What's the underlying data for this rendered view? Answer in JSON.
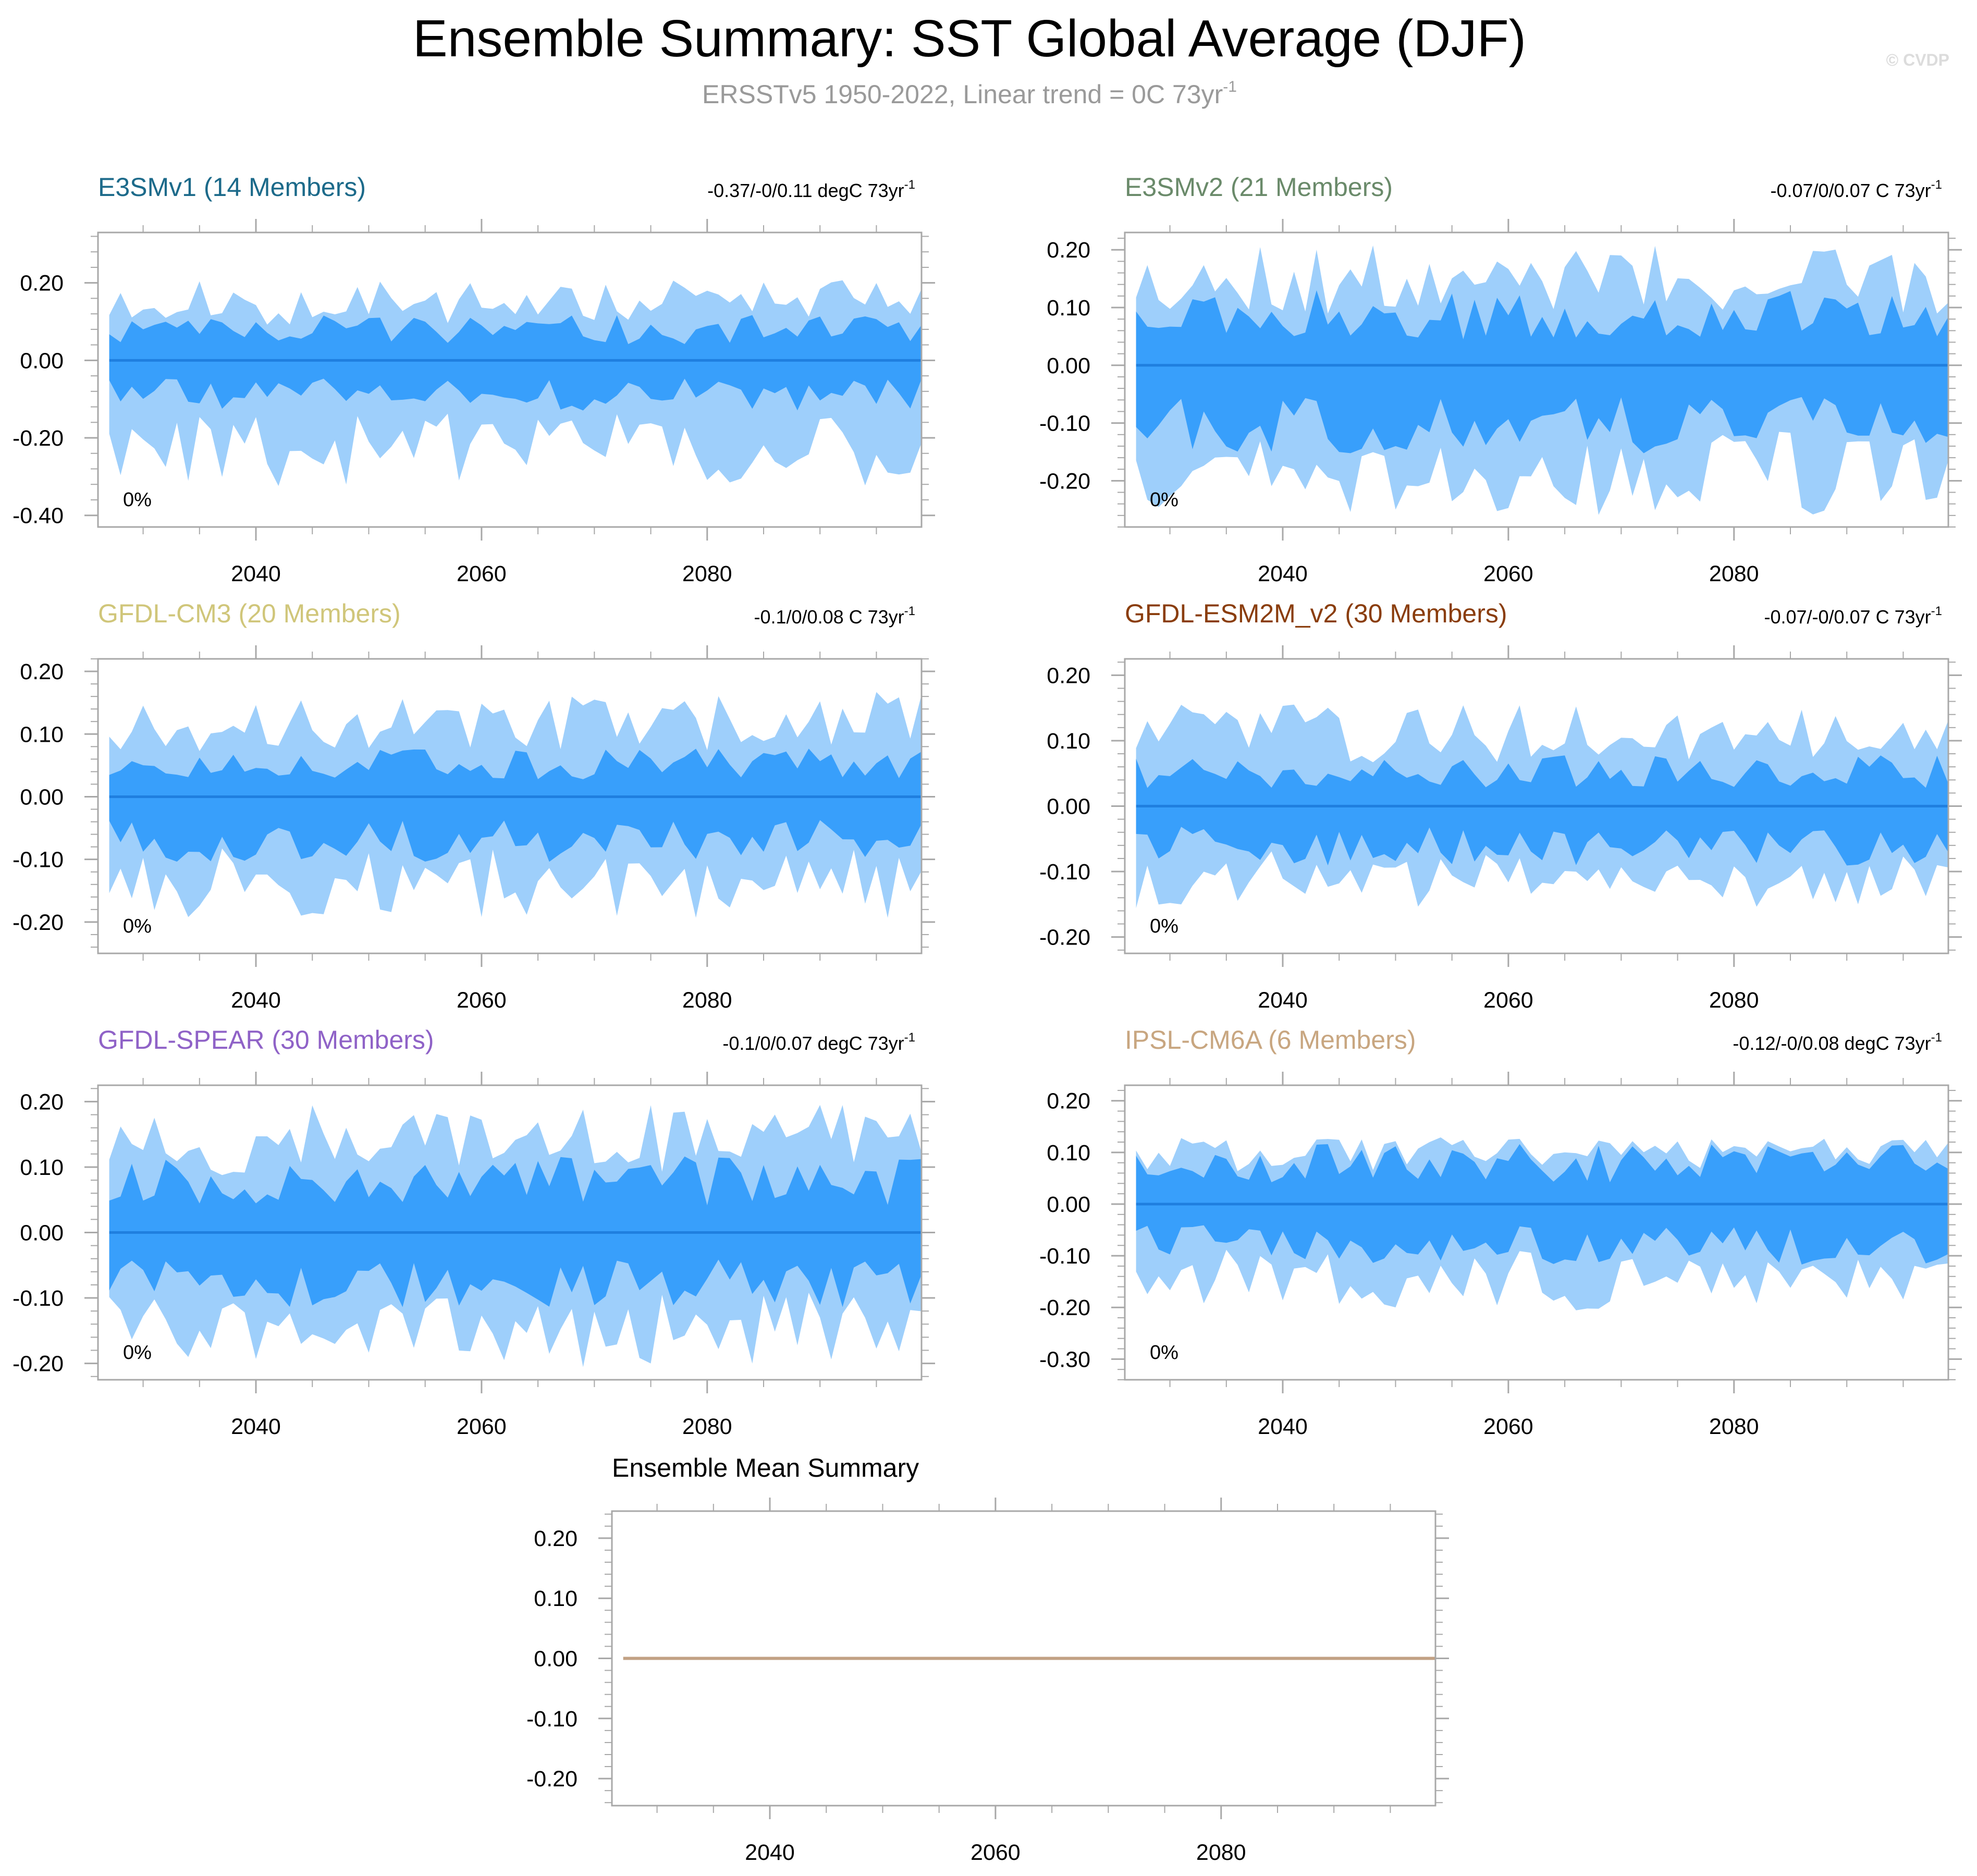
{
  "title": "Ensemble Summary: SST Global Average (DJF)",
  "subtitle": "ERSSTv5 1950-2022, Linear trend = 0C 73yr",
  "subtitle_sup": "-1",
  "watermark": "© CVDP",
  "colors": {
    "outer_band": "#9ecffb",
    "inner_band": "#389ffb",
    "mean_line": "#1f7fdf",
    "frame": "#a8a8a8",
    "ensemble_mean_line": "#c2a184"
  },
  "chart_data": [
    {
      "id": "e3smv1",
      "type": "area",
      "title": "E3SMv1 (14 Members)",
      "title_color": "#1c6a8a",
      "trend_text": "-0.37/-0/0.11 degC 73yr",
      "trend_sup": "-1",
      "percent_label": "0%",
      "xlim": [
        2026,
        2099
      ],
      "xticks": [
        2040,
        2060,
        2080
      ],
      "ylim": [
        -0.43,
        0.33
      ],
      "yticks": [
        0.2,
        0.0,
        -0.2,
        -0.4
      ],
      "ytick_labels": [
        "0.20",
        "0.00",
        "-0.20",
        "-0.40"
      ],
      "amp": {
        "outer_hi": 0.16,
        "outer_lo": -0.25,
        "inner_hi": 0.09,
        "inner_lo": -0.1
      },
      "seed": 11,
      "mean": 0.0
    },
    {
      "id": "e3smv2",
      "type": "area",
      "title": "E3SMv2 (21 Members)",
      "title_color": "#6a8a6a",
      "trend_text": "-0.07/0/0.07 C 73yr",
      "trend_sup": "-1",
      "percent_label": "0%",
      "xlim": [
        2026,
        2099
      ],
      "xticks": [
        2040,
        2060,
        2080
      ],
      "ylim": [
        -0.28,
        0.23
      ],
      "yticks": [
        0.2,
        0.1,
        0.0,
        -0.1,
        -0.2
      ],
      "ytick_labels": [
        "0.20",
        "0.10",
        "0.00",
        "-0.10",
        "-0.20"
      ],
      "amp": {
        "outer_hi": 0.16,
        "outer_lo": -0.2,
        "inner_hi": 0.1,
        "inner_lo": -0.12
      },
      "seed": 23,
      "mean": 0.0
    },
    {
      "id": "gfdl-cm3",
      "type": "area",
      "title": "GFDL-CM3 (20 Members)",
      "title_color": "#d0c67a",
      "trend_text": "-0.1/0/0.08 C 73yr",
      "trend_sup": "-1",
      "percent_label": "0%",
      "xlim": [
        2026,
        2099
      ],
      "xticks": [
        2040,
        2060,
        2080
      ],
      "ylim": [
        -0.25,
        0.22
      ],
      "yticks": [
        0.2,
        0.1,
        0.0,
        -0.1,
        -0.2
      ],
      "ytick_labels": [
        "0.20",
        "0.10",
        "0.00",
        "-0.10",
        "-0.20"
      ],
      "amp": {
        "outer_hi": 0.13,
        "outer_lo": -0.15,
        "inner_hi": 0.06,
        "inner_lo": -0.08
      },
      "seed": 37,
      "mean": 0.0
    },
    {
      "id": "gfdl-esm2m",
      "type": "area",
      "title": "GFDL-ESM2M_v2 (30 Members)",
      "title_color": "#8a3d0c",
      "trend_text": "-0.07/-0/0.07 C 73yr",
      "trend_sup": "-1",
      "percent_label": "0%",
      "xlim": [
        2026,
        2099
      ],
      "xticks": [
        2040,
        2060,
        2080
      ],
      "ylim": [
        -0.225,
        0.225
      ],
      "yticks": [
        0.2,
        0.1,
        0.0,
        -0.1,
        -0.2
      ],
      "ytick_labels": [
        "0.20",
        "0.10",
        "0.00",
        "-0.10",
        "-0.20"
      ],
      "amp": {
        "outer_hi": 0.12,
        "outer_lo": -0.12,
        "inner_hi": 0.06,
        "inner_lo": -0.07
      },
      "seed": 41,
      "mean": 0.0
    },
    {
      "id": "gfdl-spear",
      "type": "area",
      "title": "GFDL-SPEAR (30 Members)",
      "title_color": "#8f62c7",
      "trend_text": "-0.1/0/0.07 degC 73yr",
      "trend_sup": "-1",
      "percent_label": "0%",
      "xlim": [
        2026,
        2099
      ],
      "xticks": [
        2040,
        2060,
        2080
      ],
      "ylim": [
        -0.225,
        0.225
      ],
      "yticks": [
        0.2,
        0.1,
        0.0,
        -0.1,
        -0.2
      ],
      "ytick_labels": [
        "0.20",
        "0.10",
        "0.00",
        "-0.10",
        "-0.20"
      ],
      "amp": {
        "outer_hi": 0.15,
        "outer_lo": -0.16,
        "inner_hi": 0.09,
        "inner_lo": -0.09
      },
      "seed": 53,
      "mean": 0.0
    },
    {
      "id": "ipsl-cm6a",
      "type": "area",
      "title": "IPSL-CM6A (6 Members)",
      "title_color": "#c8a680",
      "trend_text": "-0.12/-0/0.08 degC 73yr",
      "trend_sup": "-1",
      "percent_label": "0%",
      "xlim": [
        2026,
        2099
      ],
      "xticks": [
        2040,
        2060,
        2080
      ],
      "ylim": [
        -0.34,
        0.23
      ],
      "yticks": [
        0.2,
        0.1,
        0.0,
        -0.1,
        -0.2,
        -0.3
      ],
      "ytick_labels": [
        "0.20",
        "0.10",
        "0.00",
        "-0.10",
        "-0.20",
        "-0.30"
      ],
      "amp": {
        "outer_hi": 0.1,
        "outer_lo": -0.16,
        "inner_hi": 0.09,
        "inner_lo": -0.09
      },
      "seed": 67,
      "mean": 0.0
    },
    {
      "id": "ensemble-mean",
      "type": "line",
      "title": "Ensemble Mean Summary",
      "title_color": "#000000",
      "xlim": [
        2026,
        2099
      ],
      "xticks": [
        2040,
        2060,
        2080
      ],
      "ylim": [
        -0.245,
        0.245
      ],
      "yticks": [
        0.2,
        0.1,
        0.0,
        -0.1,
        -0.2
      ],
      "ytick_labels": [
        "0.20",
        "0.10",
        "0.00",
        "-0.10",
        "-0.20"
      ],
      "series": [
        {
          "name": "ensemble mean",
          "x": [
            2027,
            2099
          ],
          "values": [
            0.0,
            0.0
          ]
        }
      ]
    }
  ]
}
